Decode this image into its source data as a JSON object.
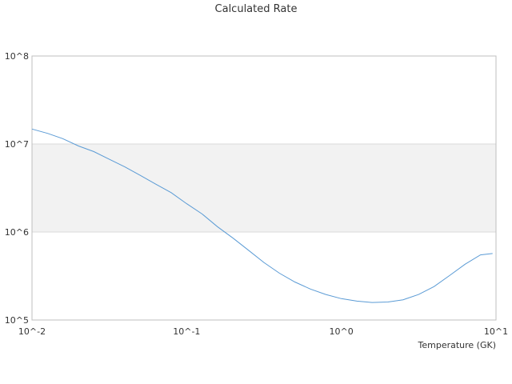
{
  "chart_data": {
    "type": "line",
    "title": "Calculated Rate",
    "xlabel": "Temperature (GK)",
    "ylabel": "",
    "xscale": "log",
    "yscale": "log",
    "xlim": [
      0.01,
      10
    ],
    "ylim": [
      100000,
      100000000
    ],
    "x_ticks": [
      "10^-2",
      "10^-1",
      "10^0",
      "10^1"
    ],
    "y_ticks": [
      "10^5",
      "10^6",
      "10^7",
      "10^8"
    ],
    "grid": true,
    "legend": "none",
    "band": {
      "y_from": 1000000,
      "y_to": 10000000,
      "color": "#f2f2f2"
    },
    "colors": {
      "line": "#5b9bd5",
      "grid": "#d9d9d9",
      "axis": "#bfbfbf"
    },
    "series": [
      {
        "x": [
          0.01,
          0.0126,
          0.0158,
          0.02,
          0.0251,
          0.0316,
          0.0398,
          0.0501,
          0.0631,
          0.0794,
          0.1,
          0.126,
          0.158,
          0.2,
          0.251,
          0.316,
          0.398,
          0.501,
          0.631,
          0.794,
          1.0,
          1.26,
          1.58,
          2.0,
          2.51,
          3.16,
          3.98,
          5.01,
          6.31,
          7.94,
          9.5
        ],
        "y": [
          14800000,
          13200000,
          11500000,
          9500000,
          8200000,
          6700000,
          5500000,
          4400000,
          3500000,
          2800000,
          2100000,
          1600000,
          1150000,
          850000,
          620000,
          450000,
          340000,
          270000,
          225000,
          195000,
          175000,
          164000,
          158000,
          160000,
          170000,
          195000,
          240000,
          320000,
          430000,
          550000,
          570000
        ]
      }
    ]
  }
}
